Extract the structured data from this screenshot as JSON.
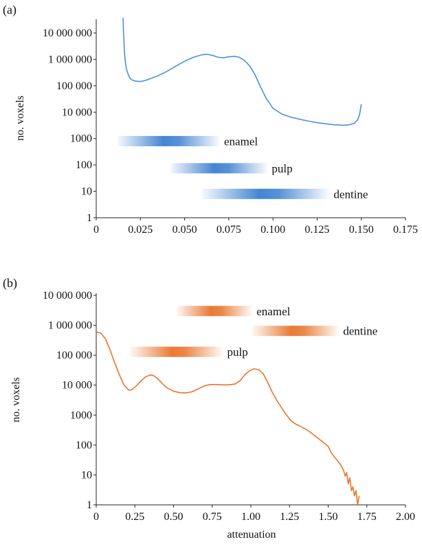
{
  "chart_data": [
    {
      "panel": "a",
      "type": "line",
      "panel_label": "(a)",
      "xlabel": "",
      "ylabel": "no. voxels",
      "xlim": [
        0,
        0.175
      ],
      "ylim": [
        1,
        10000000
      ],
      "yscale": "log",
      "x_ticks": [
        0,
        0.025,
        0.05,
        0.075,
        0.1,
        0.125,
        0.15,
        0.175
      ],
      "x_tick_labels": [
        "0",
        "0.025",
        "0.050",
        "0.075",
        "0.100",
        "0.125",
        "0.150",
        "0.175"
      ],
      "y_ticks": [
        1,
        10,
        100,
        1000,
        10000,
        100000,
        1000000,
        10000000
      ],
      "y_tick_labels": [
        "1",
        "10",
        "100",
        "1000",
        "10 000",
        "100 000",
        "1 000 000",
        "10 000 000"
      ],
      "grid": false,
      "line_color": "#4a90d9",
      "series": [
        {
          "x": [
            0.0152,
            0.0154,
            0.0157,
            0.016,
            0.0165,
            0.017,
            0.018,
            0.019,
            0.02,
            0.022,
            0.025,
            0.028,
            0.03,
            0.035,
            0.04,
            0.045,
            0.05,
            0.055,
            0.06,
            0.063,
            0.066,
            0.069,
            0.072,
            0.075,
            0.078,
            0.081,
            0.084,
            0.087,
            0.09,
            0.093,
            0.096,
            0.1,
            0.105,
            0.11,
            0.115,
            0.12,
            0.125,
            0.13,
            0.135,
            0.14,
            0.143,
            0.146,
            0.148,
            0.149,
            0.15
          ],
          "y": [
            40000000,
            13000000,
            4500000,
            1800000,
            800000,
            450000,
            280000,
            200000,
            170000,
            150000,
            145000,
            160000,
            180000,
            240000,
            350000,
            550000,
            850000,
            1200000,
            1500000,
            1550000,
            1400000,
            1200000,
            1150000,
            1250000,
            1300000,
            1200000,
            900000,
            550000,
            250000,
            90000,
            35000,
            14000,
            8500,
            6500,
            5400,
            4600,
            4000,
            3600,
            3300,
            3200,
            3300,
            3800,
            5200,
            8000,
            20000
          ]
        }
      ],
      "bands": [
        {
          "label": "enamel",
          "x_start": 0.012,
          "x_end": 0.07,
          "y_center": 800,
          "color": "#3a7fcf"
        },
        {
          "label": "pulp",
          "x_start": 0.042,
          "x_end": 0.097,
          "y_center": 75,
          "color": "#3a7fcf"
        },
        {
          "label": "dentine",
          "x_start": 0.06,
          "x_end": 0.132,
          "y_center": 8,
          "color": "#3a7fcf"
        }
      ]
    },
    {
      "panel": "b",
      "type": "line",
      "panel_label": "(b)",
      "xlabel": "attenuation",
      "ylabel": "no. voxels",
      "xlim": [
        0,
        2.0
      ],
      "ylim": [
        1,
        10000000
      ],
      "yscale": "log",
      "x_ticks": [
        0,
        0.25,
        0.5,
        0.75,
        1.0,
        1.25,
        1.5,
        1.75,
        2.0
      ],
      "x_tick_labels": [
        "0",
        "0.25",
        "0.50",
        "0.75",
        "1.00",
        "1.25",
        "1.50",
        "1.75",
        "2.00"
      ],
      "y_ticks": [
        1,
        10,
        100,
        1000,
        10000,
        100000,
        1000000,
        10000000
      ],
      "y_tick_labels": [
        "1",
        "10",
        "100",
        "1000",
        "10 000",
        "100 000",
        "1 000 000",
        "10 000 000"
      ],
      "grid": false,
      "line_color": "#e8742a",
      "series": [
        {
          "x": [
            0,
            0.03,
            0.06,
            0.09,
            0.12,
            0.15,
            0.18,
            0.21,
            0.23,
            0.26,
            0.29,
            0.32,
            0.35,
            0.37,
            0.4,
            0.43,
            0.46,
            0.5,
            0.54,
            0.58,
            0.62,
            0.66,
            0.7,
            0.74,
            0.78,
            0.82,
            0.86,
            0.9,
            0.93,
            0.96,
            0.99,
            1.02,
            1.05,
            1.08,
            1.11,
            1.14,
            1.17,
            1.2,
            1.23,
            1.26,
            1.29,
            1.32,
            1.35,
            1.38,
            1.41,
            1.44,
            1.47,
            1.5,
            1.52,
            1.54,
            1.56,
            1.58,
            1.6,
            1.61,
            1.62,
            1.63,
            1.64,
            1.65,
            1.66,
            1.67,
            1.68,
            1.69,
            1.7
          ],
          "y": [
            600000,
            550000,
            350000,
            150000,
            55000,
            22000,
            10000,
            6800,
            7000,
            9500,
            14000,
            19000,
            22000,
            21000,
            16000,
            11000,
            8000,
            6300,
            5600,
            5500,
            6000,
            7500,
            9500,
            10500,
            10500,
            10200,
            10200,
            11000,
            14000,
            22000,
            30000,
            35000,
            33000,
            24000,
            12000,
            5500,
            3000,
            1700,
            1000,
            650,
            500,
            420,
            350,
            280,
            210,
            160,
            120,
            90,
            55,
            40,
            30,
            22,
            14,
            9,
            12,
            5,
            8,
            3,
            4,
            2,
            3,
            1,
            2
          ]
        }
      ],
      "bands": [
        {
          "label": "enamel",
          "x_start": 0.52,
          "x_end": 1.01,
          "y_center": 3000000,
          "color": "#e8742a"
        },
        {
          "label": "dentine",
          "x_start": 1.01,
          "x_end": 1.57,
          "y_center": 650000,
          "color": "#e8742a"
        },
        {
          "label": "pulp",
          "x_start": 0.22,
          "x_end": 0.82,
          "y_center": 130000,
          "color": "#e8742a"
        }
      ]
    }
  ]
}
